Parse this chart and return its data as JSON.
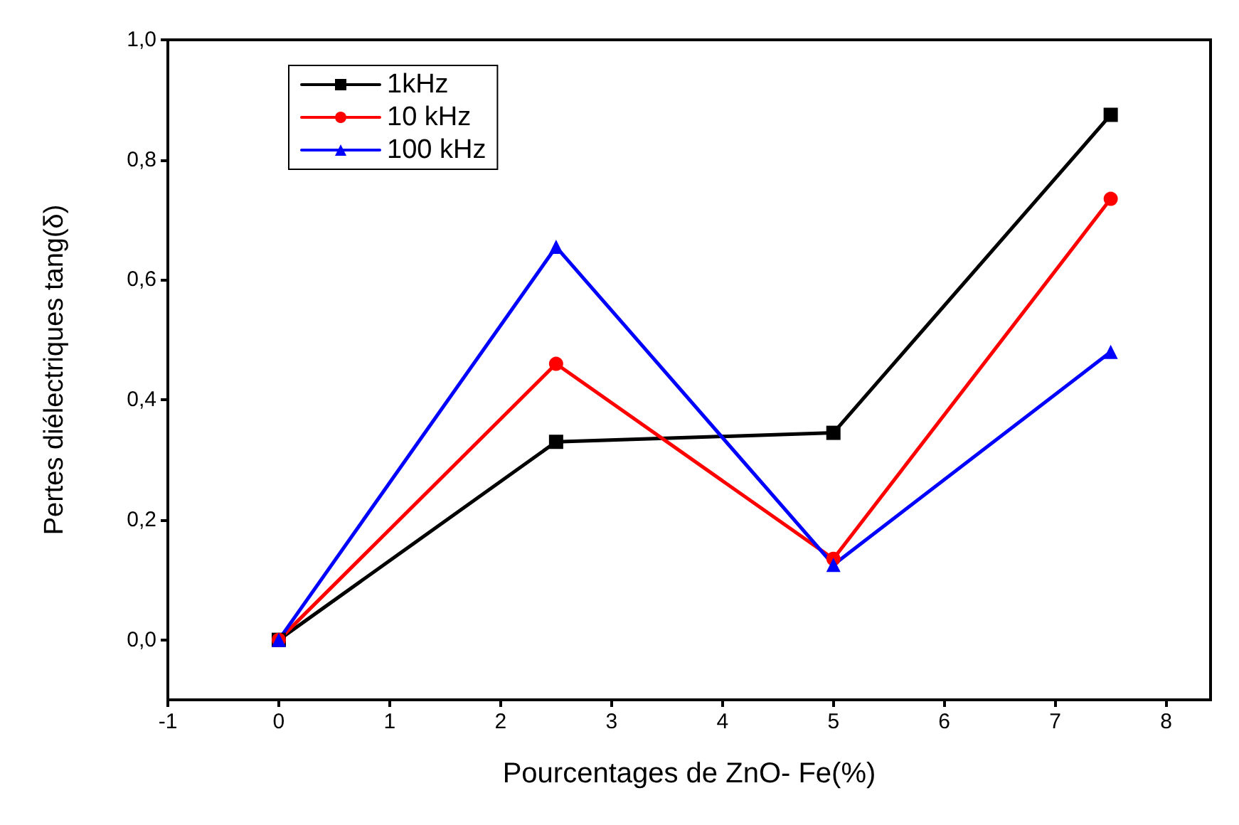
{
  "chart_data": {
    "type": "line",
    "xlabel": "Pourcentages de ZnO- Fe(%)",
    "ylabel": "Pertes diélectriques tang(δ)",
    "x": [
      0,
      2.5,
      5,
      7.5
    ],
    "series": [
      {
        "name": "1kHz",
        "color": "#000000",
        "marker": "square",
        "values": [
          0,
          0.33,
          0.345,
          0.875
        ]
      },
      {
        "name": "10 kHz",
        "color": "#ff0000",
        "marker": "circle",
        "values": [
          0,
          0.46,
          0.135,
          0.735
        ]
      },
      {
        "name": "100 kHz",
        "color": "#0000ff",
        "marker": "triangle",
        "values": [
          0,
          0.655,
          0.125,
          0.48
        ]
      }
    ],
    "xlim": [
      -1,
      8.4
    ],
    "xticks": [
      -1,
      0,
      1,
      2,
      3,
      4,
      5,
      6,
      7,
      8
    ],
    "ylim": [
      -0.1,
      1.0
    ],
    "yticks": [
      {
        "value": 0,
        "label": "0,0"
      },
      {
        "value": 0.2,
        "label": "0,2"
      },
      {
        "value": 0.4,
        "label": "0,4"
      },
      {
        "value": 0.6,
        "label": "0,6"
      },
      {
        "value": 0.8,
        "label": "0,8"
      },
      {
        "value": 1.0,
        "label": "1,0"
      }
    ],
    "grid": false,
    "legend": "top left",
    "line_style": "solid"
  }
}
